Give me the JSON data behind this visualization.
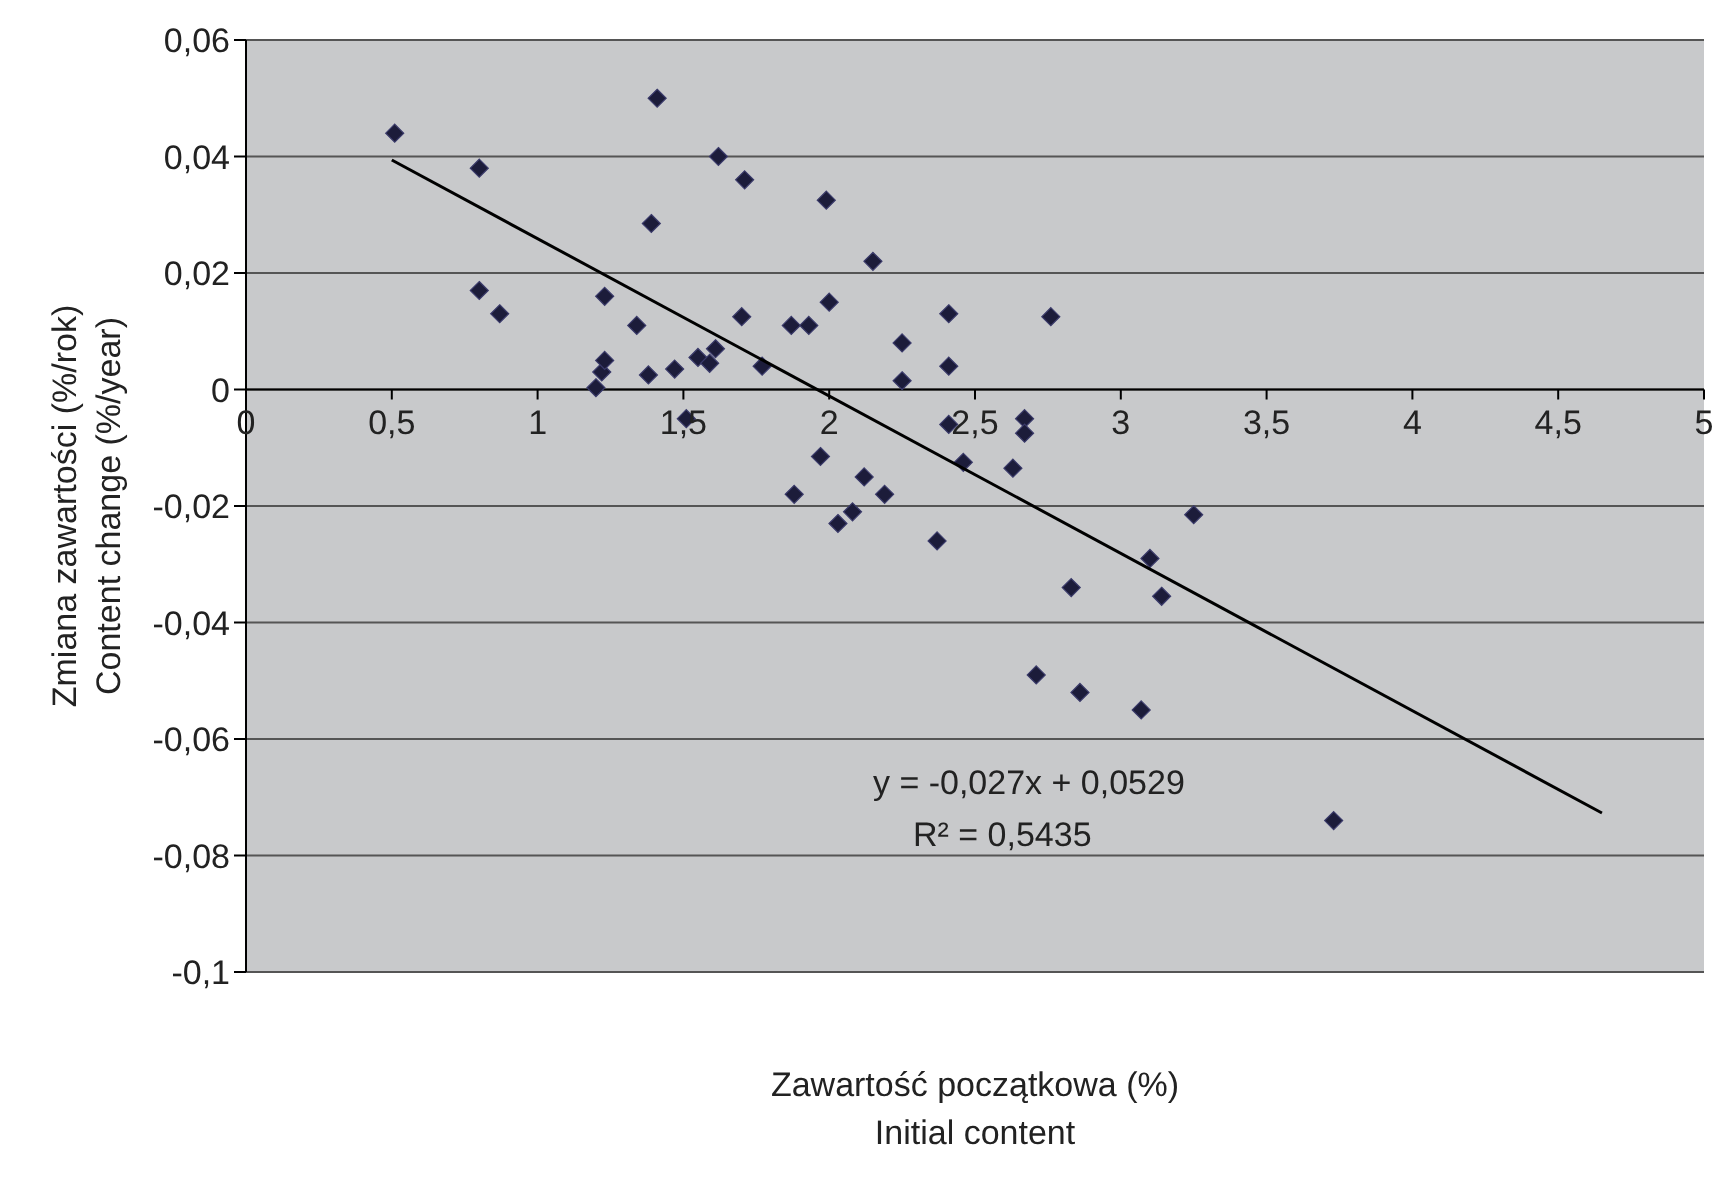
{
  "chart_data": {
    "type": "scatter",
    "xlabel": "Zawartość początkowa (%)\nInitial content",
    "ylabel": "Zmiana zawartości (%/rok)\nContent change (%/year)",
    "xlim": [
      0,
      5
    ],
    "xticks": [
      0,
      {
        "value": 0.5,
        "label": "0,5"
      },
      1,
      {
        "value": 1.5,
        "label": "1,5"
      },
      2,
      {
        "value": 2.5,
        "label": "2,5"
      },
      3,
      {
        "value": 3.5,
        "label": "3,5"
      },
      4,
      {
        "value": 4.5,
        "label": "4,5"
      },
      5
    ],
    "ylim": [
      -0.1,
      0.06
    ],
    "yticks": [
      {
        "value": -0.1,
        "label": "-0,1"
      },
      {
        "value": -0.08,
        "label": "-0,08"
      },
      {
        "value": -0.06,
        "label": "-0,06"
      },
      {
        "value": -0.04,
        "label": "-0,04"
      },
      {
        "value": -0.02,
        "label": "-0,02"
      },
      0,
      {
        "value": 0.02,
        "label": "0,02"
      },
      {
        "value": 0.04,
        "label": "0,04"
      },
      {
        "value": 0.06,
        "label": "0,06"
      }
    ],
    "grid": "y",
    "marker": "diamond",
    "series": [
      {
        "color": "#1c1c3a",
        "x": [
          0.51,
          0.8,
          0.8,
          0.87,
          1.2,
          1.22,
          1.23,
          1.23,
          1.34,
          1.38,
          1.39,
          1.41,
          1.47,
          1.51,
          1.55,
          1.59,
          1.61,
          1.62,
          1.7,
          1.71,
          1.77,
          1.87,
          1.88,
          1.93,
          1.97,
          1.99,
          2.0,
          2.03,
          2.08,
          2.12,
          2.15,
          2.19,
          2.25,
          2.25,
          2.37,
          2.41,
          2.41,
          2.41,
          2.46,
          2.63,
          2.67,
          2.67,
          2.71,
          2.76,
          2.83,
          2.86,
          3.07,
          3.1,
          3.14,
          3.25,
          3.73
        ],
        "values": [
          0.044,
          0.038,
          0.017,
          0.013,
          0.0003,
          0.003,
          0.005,
          0.016,
          0.011,
          0.0025,
          0.0285,
          0.05,
          0.0035,
          -0.005,
          0.0055,
          0.0045,
          0.007,
          0.04,
          0.0125,
          0.036,
          0.004,
          0.011,
          -0.018,
          0.011,
          -0.0115,
          0.0325,
          0.015,
          -0.023,
          -0.021,
          -0.015,
          0.022,
          -0.018,
          0.008,
          0.0015,
          -0.026,
          0.013,
          0.004,
          -0.006,
          -0.0125,
          -0.0135,
          -0.005,
          -0.0075,
          -0.049,
          0.0125,
          -0.034,
          -0.052,
          -0.055,
          -0.029,
          -0.0355,
          -0.0215,
          -0.074
        ]
      },
      {
        "type": "line",
        "color": "#000000",
        "marker": "none",
        "x": [
          0.5,
          4.65
        ],
        "values": [
          0.0394,
          -0.0727
        ]
      }
    ],
    "annotations": [
      "y = -0,027x + 0,0529",
      "R² = 0,5435"
    ]
  }
}
